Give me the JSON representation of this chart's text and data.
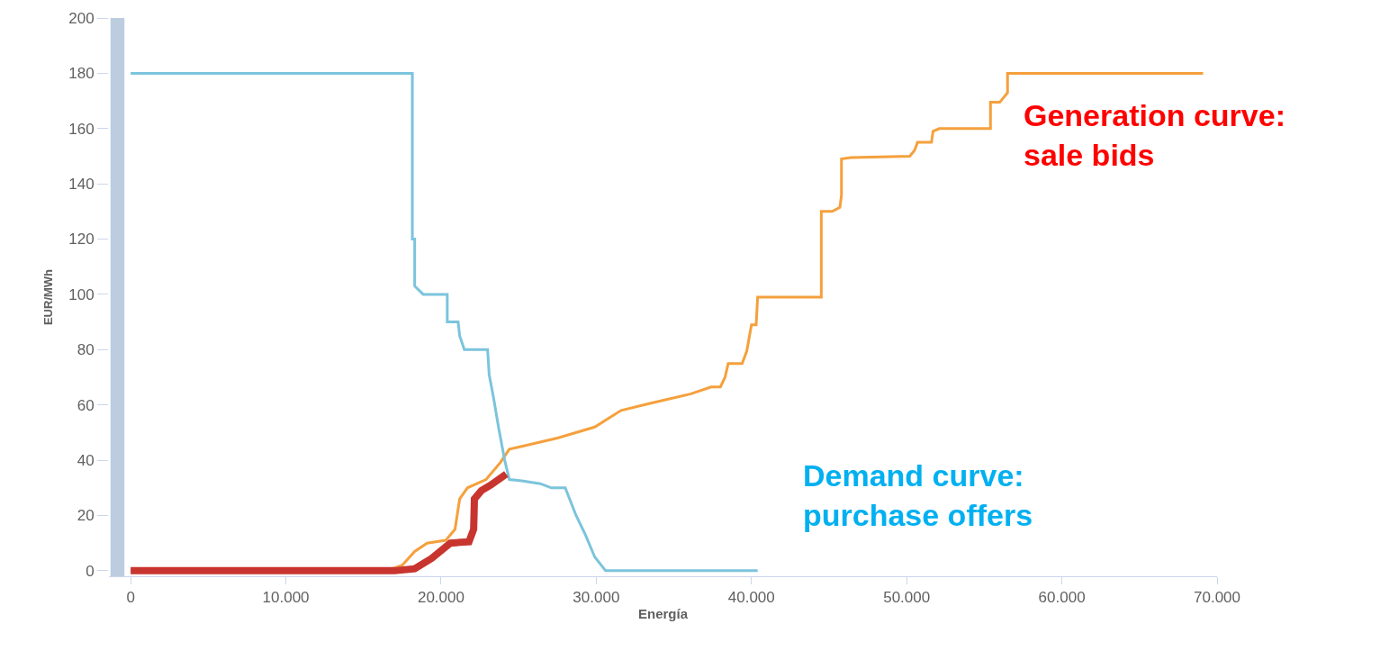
{
  "chart_data": {
    "type": "line",
    "xlabel": "Energía",
    "ylabel": "EUR/MWh",
    "xlim": [
      -1400,
      70000
    ],
    "ylim": [
      -2,
      200
    ],
    "xticks": [
      0,
      {
        "value": 10000,
        "label": "10.000"
      },
      {
        "value": 20000,
        "label": "20.000"
      },
      {
        "value": 30000,
        "label": "30.000"
      },
      {
        "value": 40000,
        "label": "40.000"
      },
      {
        "value": 50000,
        "label": "50.000"
      },
      {
        "value": 60000,
        "label": "60.000"
      },
      {
        "value": 70000,
        "label": "70.000"
      }
    ],
    "yticks": [
      0,
      20,
      40,
      60,
      80,
      100,
      120,
      140,
      160,
      180,
      200
    ],
    "grid": false,
    "marker": "none",
    "line_style": "solid",
    "bands": [
      {
        "axis": "x",
        "from": -1300,
        "to": -400,
        "color": "#bccddf"
      }
    ],
    "series": [
      {
        "color": "#f5a03c",
        "x": [
          0,
          16500,
          17500,
          18300,
          19100,
          20300,
          20900,
          21200,
          21700,
          22900,
          23800,
          24400,
          25200,
          27500,
          29900,
          31600,
          33400,
          36100,
          37400,
          38000,
          38300,
          38500,
          39400,
          39700,
          40000,
          40300,
          40400,
          44500,
          44500,
          45200,
          45700,
          45800,
          45800,
          46400,
          50200,
          50500,
          50700,
          51600,
          51700,
          52100,
          55400,
          55400,
          56000,
          56500,
          56500,
          57700,
          69100
        ],
        "values": [
          0,
          0,
          2,
          7,
          10,
          11,
          15,
          26,
          30,
          33,
          39,
          44,
          45,
          48,
          52,
          58,
          60.5,
          64,
          66.5,
          66.5,
          70,
          75,
          75,
          79.5,
          89,
          89,
          99,
          99,
          130,
          130,
          131.5,
          136,
          149,
          149.5,
          150,
          152,
          155,
          155,
          159,
          160,
          160,
          169.5,
          169.5,
          173,
          180,
          180,
          180
        ]
      },
      {
        "color": "#7bc4dc",
        "x": [
          0,
          18150,
          18150,
          18300,
          18300,
          18850,
          20400,
          20400,
          21100,
          21200,
          21500,
          23000,
          23100,
          23400,
          23700,
          24100,
          24400,
          25200,
          26400,
          27100,
          28000,
          28700,
          29300,
          29900,
          30600,
          40400
        ],
        "values": [
          180,
          180,
          120,
          120,
          103,
          100,
          100,
          90,
          90,
          85,
          80,
          80,
          71,
          62,
          52,
          40,
          33,
          32.5,
          31.5,
          30,
          30,
          20,
          13,
          5,
          0,
          0
        ]
      },
      {
        "color": "#c8352e",
        "x": [
          0,
          17000,
          18300,
          19400,
          20600,
          21800,
          22100,
          22150,
          22600,
          23200,
          24200
        ],
        "values": [
          0,
          0,
          0.7,
          4.5,
          10,
          10.5,
          15,
          26,
          29,
          31,
          35
        ]
      }
    ],
    "annotations": [
      "Generation curve:\nsale bids",
      "Demand curve:\npurchase offers"
    ]
  }
}
